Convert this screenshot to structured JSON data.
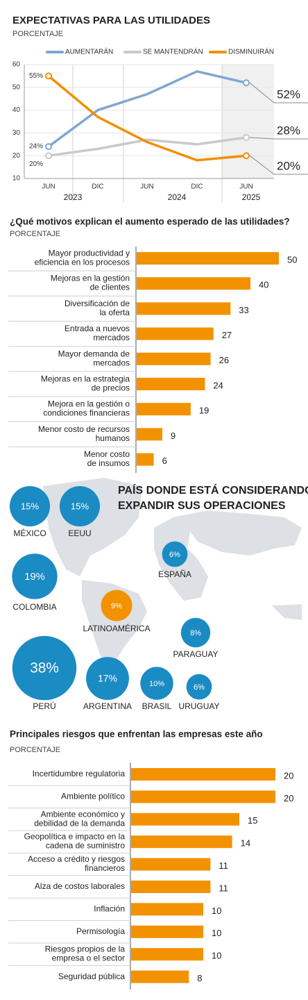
{
  "chart_data": [
    {
      "type": "line",
      "title": "EXPECTATIVAS PARA LAS UTILIDADES",
      "subtitle": "PORCENTAJE",
      "categories": [
        "JUN",
        "DIC",
        "JUN",
        "DIC",
        "JUN"
      ],
      "years": [
        "2023",
        "2024",
        "2025"
      ],
      "series": [
        {
          "name": "AUMENTARÁN",
          "color": "#7fa7d0",
          "values": [
            24,
            40,
            47,
            57,
            52
          ],
          "value_labels": [
            "24%",
            null,
            null,
            null,
            "52%"
          ]
        },
        {
          "name": "SE MANTENDRÁN",
          "color": "#c9c9c9",
          "values": [
            20,
            23,
            27,
            25,
            28
          ],
          "value_labels": [
            "20%",
            null,
            null,
            null,
            "28%"
          ]
        },
        {
          "name": "DISMINUIRÁN",
          "color": "#f18f00",
          "values": [
            55,
            37,
            26,
            18,
            20
          ],
          "value_labels": [
            "55%",
            null,
            null,
            null,
            "20%"
          ]
        }
      ],
      "ylim": [
        10,
        60
      ],
      "yticks": [
        10,
        20,
        30,
        40,
        50,
        60
      ],
      "grid": true
    },
    {
      "type": "bar",
      "title": "¿Qué motivos explican el aumento esperado de las utilidades?",
      "subtitle": "PORCENTAJE",
      "categories": [
        "Mayor productividad y\neficiencia en los procesos",
        "Mejoras en la gestión\nde clientes",
        "Diversificación de\nla oferta",
        "Entrada a nuevos\nmercados",
        "Mayor demanda de\nmercados",
        "Mejoras en la estrategia\nde precios",
        "Mejora en la gestión  o\ncondiciones financieras",
        "Menor costo de recursos\nhumanos",
        "Menor costo\nde insumos"
      ],
      "values": [
        50,
        40,
        33,
        27,
        26,
        24,
        19,
        9,
        6
      ],
      "color": "#f39200"
    },
    {
      "type": "bubble",
      "title": "PAÍS DONDE ESTÁ CONSIDERANDO\nEXPANDIR SUS OPERACIONES",
      "categories": [
        "MÉXICO",
        "EEUU",
        "COLOMBIA",
        "LATINOAMÉRICA",
        "ESPAÑA",
        "PARAGUAY",
        "PERÚ",
        "ARGENTINA",
        "BRASIL",
        "URUGUAY"
      ],
      "values": [
        15,
        15,
        19,
        9,
        6,
        8,
        38,
        17,
        10,
        6
      ],
      "value_labels": [
        "15%",
        "15%",
        "19%",
        "9%",
        "6%",
        "8%",
        "38%",
        "17%",
        "10%",
        "6%"
      ],
      "colors": [
        "#1b8bc4",
        "#1b8bc4",
        "#1b8bc4",
        "#f39200",
        "#1b8bc4",
        "#1b8bc4",
        "#1b8bc4",
        "#1b8bc4",
        "#1b8bc4",
        "#1b8bc4"
      ]
    },
    {
      "type": "bar",
      "title": "Principales riesgos que enfrentan las empresas este año",
      "subtitle": "PORCENTAJE",
      "categories": [
        "Incertidumbre regulatoria",
        "Ambiente político",
        "Ambiente económico y\ndebilidad de la demanda",
        "Geopolítica e impacto en la\ncadena de suministro",
        "Acceso a crédito y riesgos\nfinancieros",
        "Alza de costos laborales",
        "Inflación",
        "Permisología",
        "Riesgos propios de la\nempresa o el sector",
        "Seguridad pública"
      ],
      "values": [
        20,
        20,
        15,
        14,
        11,
        11,
        10,
        10,
        10,
        8
      ],
      "color": "#f39200"
    }
  ]
}
